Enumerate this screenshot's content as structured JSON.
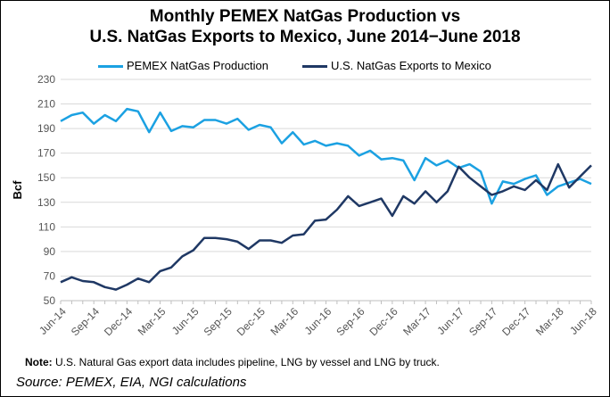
{
  "chart_data": {
    "type": "line",
    "title_line1": "Monthly PEMEX NatGas Production vs",
    "title_line2": "U.S. NatGas Exports to Mexico, June 2014−June 2018",
    "ylabel": "Bcf",
    "ylim": [
      50,
      230
    ],
    "yticks": [
      50,
      70,
      90,
      110,
      130,
      150,
      170,
      190,
      210,
      230
    ],
    "xtick_labels": [
      "Jun-14",
      "Sep-14",
      "Dec-14",
      "Mar-15",
      "Jun-15",
      "Sep-15",
      "Dec-15",
      "Mar-16",
      "Jun-16",
      "Sep-16",
      "Dec-16",
      "Mar-17",
      "Jun-17",
      "Sep-17",
      "Dec-17",
      "Mar-18",
      "Jun-18"
    ],
    "series": [
      {
        "name": "PEMEX NatGas Production",
        "color": "#1ba1e2",
        "values": [
          196,
          201,
          203,
          194,
          201,
          196,
          206,
          204,
          187,
          203,
          188,
          192,
          191,
          197,
          197,
          194,
          198,
          189,
          193,
          191,
          178,
          187,
          177,
          180,
          176,
          178,
          176,
          168,
          172,
          165,
          166,
          164,
          148,
          166,
          160,
          164,
          158,
          161,
          155,
          129,
          147,
          145,
          149,
          152,
          136,
          143,
          146,
          149,
          145
        ]
      },
      {
        "name": "U.S. NatGas Exports to Mexico",
        "color": "#1f3864",
        "values": [
          65,
          69,
          66,
          65,
          61,
          59,
          63,
          68,
          65,
          74,
          77,
          86,
          91,
          101,
          101,
          100,
          98,
          92,
          99,
          99,
          97,
          103,
          104,
          115,
          116,
          124,
          135,
          127,
          130,
          133,
          119,
          135,
          129,
          139,
          130,
          139,
          159,
          150,
          143,
          136,
          139,
          143,
          140,
          148,
          140,
          161,
          142,
          151,
          160
        ]
      }
    ]
  },
  "note": {
    "label": "Note:",
    "text": " U.S. Natural Gas export data includes pipeline, LNG by vessel and LNG by truck."
  },
  "source": "Source: PEMEX, EIA, NGI calculations"
}
